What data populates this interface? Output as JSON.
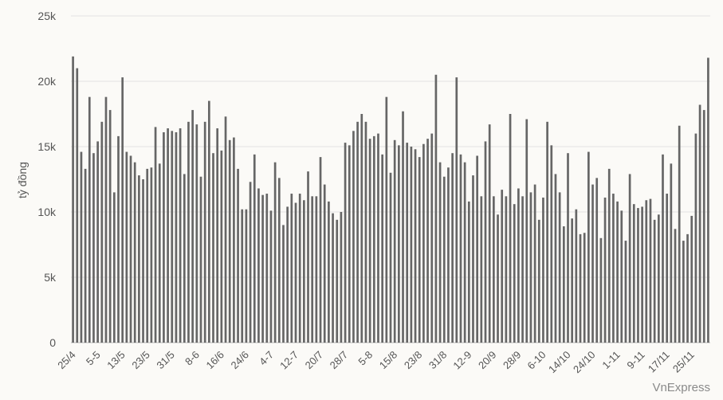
{
  "chart_data": {
    "type": "bar",
    "title": "",
    "xlabel": "",
    "ylabel": "tỷ đồng",
    "ylim": [
      0,
      25000
    ],
    "yticks": [
      0,
      5000,
      10000,
      15000,
      20000,
      25000
    ],
    "ytick_labels": [
      "0",
      "5k",
      "10k",
      "15k",
      "20k",
      "25k"
    ],
    "grid": true,
    "bar_color": "#666666",
    "grid_color": "#e3e3e3",
    "text_color": "#555555",
    "x_tick_labels": [
      "25/4",
      "5-5",
      "13/5",
      "23/5",
      "31/5",
      "8-6",
      "16/6",
      "24/6",
      "4-7",
      "12-7",
      "20/7",
      "28/7",
      "5-8",
      "15/8",
      "23/8",
      "31/8",
      "12-9",
      "20/9",
      "28/9",
      "6-10",
      "14/10",
      "24/10",
      "1-11",
      "9-11",
      "17/11",
      "25/11"
    ],
    "x_tick_every": 6,
    "values": [
      21900,
      21000,
      14600,
      13300,
      18800,
      14500,
      15400,
      16900,
      18800,
      17800,
      11500,
      15800,
      20300,
      14600,
      14300,
      13800,
      12800,
      12500,
      13300,
      13400,
      16500,
      13700,
      16100,
      16400,
      16200,
      16100,
      16400,
      12900,
      16900,
      17800,
      16700,
      12700,
      16900,
      18500,
      14500,
      16400,
      14700,
      17300,
      15500,
      15700,
      13300,
      10200,
      10200,
      12300,
      14400,
      11800,
      11300,
      11400,
      10100,
      13800,
      12600,
      9000,
      10400,
      11400,
      10700,
      11400,
      10900,
      13100,
      11200,
      11200,
      14200,
      12100,
      10800,
      9900,
      9400,
      10000,
      15300,
      15100,
      16200,
      16900,
      17500,
      16900,
      15600,
      15800,
      16000,
      14400,
      18800,
      13000,
      15500,
      15100,
      17700,
      15300,
      15000,
      14800,
      14200,
      15200,
      15600,
      16000,
      20500,
      13800,
      12700,
      13400,
      14500,
      20300,
      14400,
      13800,
      10800,
      12800,
      14300,
      11200,
      15400,
      16700,
      11200,
      9800,
      11700,
      11200,
      17500,
      10600,
      11800,
      11200,
      17100,
      11500,
      12100,
      9400,
      11100,
      16900,
      15100,
      12900,
      11500,
      8900,
      14500,
      9500,
      10200,
      8300,
      8400,
      14600,
      12100,
      12600,
      8000,
      11100,
      13300,
      11400,
      10800,
      10100,
      7800,
      12900,
      10600,
      10300,
      10400,
      10900,
      11000,
      9400,
      9800,
      14400,
      11400,
      13700,
      8700,
      16600,
      7800,
      8300,
      9700,
      16000,
      18200,
      17800,
      21800
    ]
  },
  "watermark": "VnExpress"
}
